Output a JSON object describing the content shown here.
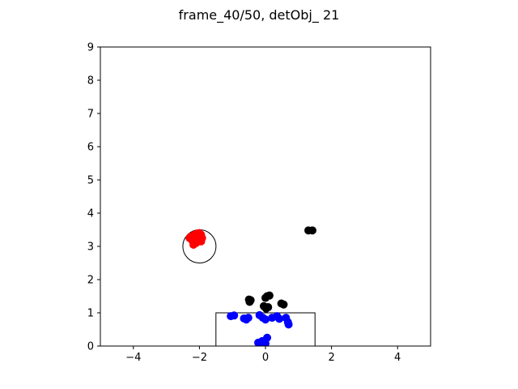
{
  "chart_data": {
    "type": "scatter",
    "title": "frame_40/50, detObj_ 21",
    "xlabel": "",
    "ylabel": "",
    "xlim": [
      -5,
      5
    ],
    "ylim": [
      0,
      9
    ],
    "xticks": [
      -4,
      -2,
      0,
      2,
      4
    ],
    "yticks": [
      0,
      1,
      2,
      3,
      4,
      5,
      6,
      7,
      8,
      9
    ],
    "grid": false,
    "series": [
      {
        "color": "#ff0000",
        "points": [
          [
            -2.3,
            3.25
          ],
          [
            -2.22,
            3.3
          ],
          [
            -2.15,
            3.35
          ],
          [
            -2.08,
            3.38
          ],
          [
            -2.0,
            3.4
          ],
          [
            -1.95,
            3.35
          ],
          [
            -2.05,
            3.28
          ],
          [
            -2.12,
            3.2
          ],
          [
            -2.0,
            3.22
          ],
          [
            -1.92,
            3.25
          ],
          [
            -2.1,
            3.1
          ],
          [
            -2.18,
            3.05
          ],
          [
            -2.05,
            3.15
          ],
          [
            -1.95,
            3.15
          ],
          [
            -2.2,
            3.15
          ],
          [
            -2.25,
            3.3
          ]
        ]
      },
      {
        "color": "#000000",
        "points": [
          [
            -0.5,
            1.4
          ],
          [
            -0.48,
            1.33
          ],
          [
            -0.45,
            1.38
          ],
          [
            0.0,
            1.45
          ],
          [
            0.05,
            1.5
          ],
          [
            0.12,
            1.52
          ],
          [
            -0.05,
            1.2
          ],
          [
            0.02,
            1.13
          ],
          [
            0.08,
            1.17
          ],
          [
            0.48,
            1.28
          ],
          [
            0.55,
            1.25
          ],
          [
            1.3,
            3.48
          ],
          [
            1.42,
            3.48
          ]
        ]
      },
      {
        "color": "#0000ff",
        "points": [
          [
            -1.05,
            0.9
          ],
          [
            -0.95,
            0.92
          ],
          [
            -0.65,
            0.83
          ],
          [
            -0.58,
            0.8
          ],
          [
            -0.52,
            0.85
          ],
          [
            -0.18,
            0.93
          ],
          [
            -0.08,
            0.85
          ],
          [
            0.0,
            0.8
          ],
          [
            0.2,
            0.85
          ],
          [
            0.35,
            0.9
          ],
          [
            0.42,
            0.82
          ],
          [
            0.62,
            0.85
          ],
          [
            0.68,
            0.72
          ],
          [
            0.7,
            0.65
          ],
          [
            -0.22,
            0.1
          ],
          [
            -0.1,
            0.15
          ],
          [
            0.05,
            0.25
          ],
          [
            -0.15,
            0.05
          ],
          [
            0.0,
            0.08
          ]
        ]
      }
    ],
    "shapes": {
      "circle": {
        "cx": -2.0,
        "cy": 3.0,
        "r": 0.5
      },
      "rectangle": {
        "x0": -1.5,
        "y0": 0.0,
        "x1": 1.5,
        "y1": 1.0
      }
    }
  }
}
